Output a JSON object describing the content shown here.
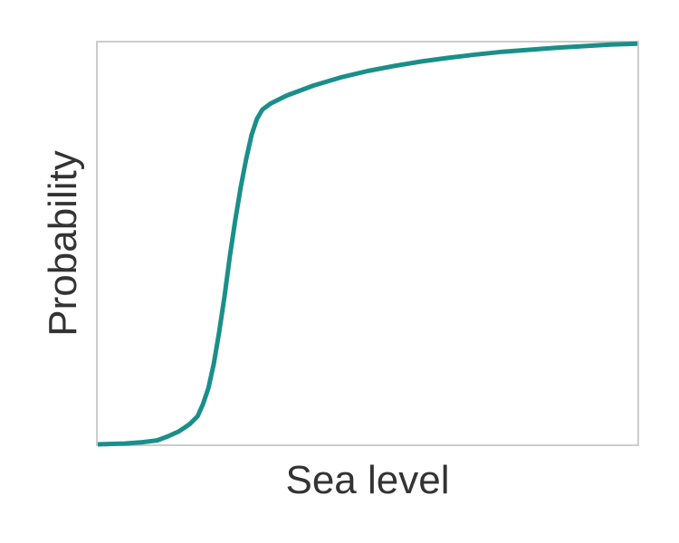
{
  "chart_data": {
    "type": "line",
    "xlabel": "Sea level",
    "ylabel": "Probability",
    "xlim": [
      0,
      1
    ],
    "ylim": [
      0,
      1
    ],
    "x_ticks": [],
    "y_ticks": [],
    "grid": false,
    "legend": "none",
    "series": [
      {
        "color": "#1a8f8a",
        "x": [
          0.0,
          0.05,
          0.08,
          0.11,
          0.13,
          0.15,
          0.17,
          0.185,
          0.195,
          0.205,
          0.215,
          0.225,
          0.235,
          0.245,
          0.255,
          0.265,
          0.275,
          0.285,
          0.295,
          0.305,
          0.32,
          0.35,
          0.4,
          0.45,
          0.5,
          0.55,
          0.6,
          0.65,
          0.7,
          0.75,
          0.8,
          0.85,
          0.9,
          0.95,
          1.0
        ],
        "y": [
          0.0,
          0.002,
          0.005,
          0.01,
          0.02,
          0.032,
          0.05,
          0.07,
          0.1,
          0.14,
          0.2,
          0.28,
          0.37,
          0.47,
          0.56,
          0.64,
          0.71,
          0.77,
          0.81,
          0.833,
          0.848,
          0.868,
          0.893,
          0.913,
          0.929,
          0.942,
          0.953,
          0.962,
          0.97,
          0.977,
          0.982,
          0.987,
          0.991,
          0.995,
          0.997
        ]
      }
    ]
  },
  "colors": {
    "series_line": "#1a8f8a",
    "axes_frame": "#cccccc",
    "label_text": "#333333"
  }
}
